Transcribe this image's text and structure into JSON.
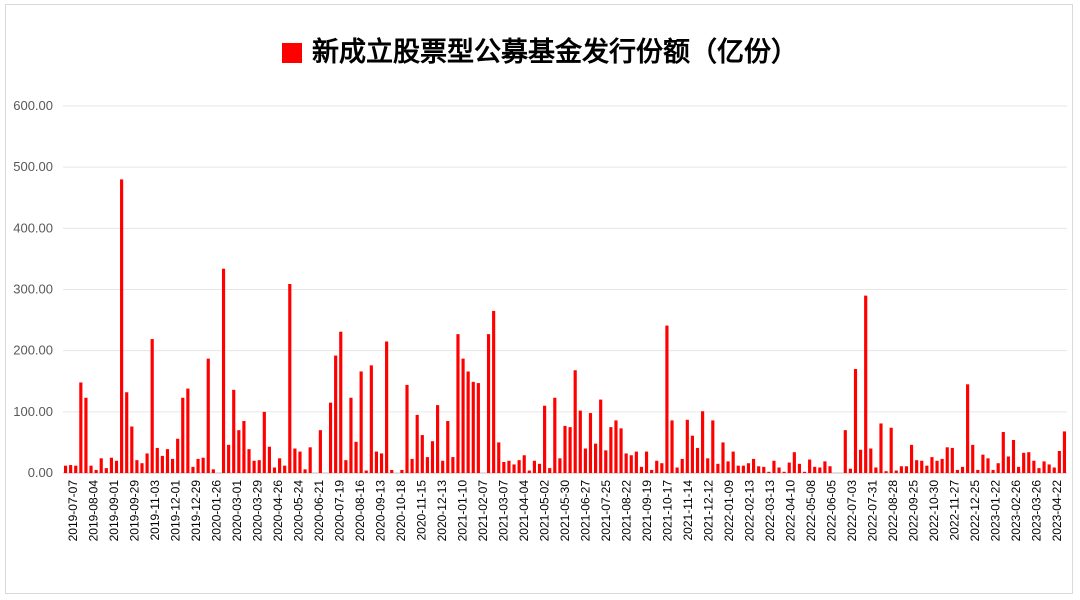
{
  "chart_data": {
    "type": "bar",
    "title": "新成立股票型公募基金发行份额（亿份）",
    "series": [
      {
        "name": "新成立股票型公募基金发行份额（亿份）",
        "color": "#ff0000"
      }
    ],
    "ylim": [
      0,
      600
    ],
    "y_ticks": [
      "0.00",
      "100.00",
      "200.00",
      "300.00",
      "400.00",
      "500.00",
      "600.00"
    ],
    "grid": true,
    "legend": "top-center",
    "x_tick_labels": [
      "2019-07-07",
      "2019-08-04",
      "2019-09-01",
      "2019-09-29",
      "2019-11-03",
      "2019-12-01",
      "2019-12-29",
      "2020-01-26",
      "2020-03-01",
      "2020-03-29",
      "2020-04-26",
      "2020-05-24",
      "2020-06-21",
      "2020-07-19",
      "2020-08-16",
      "2020-09-13",
      "2020-10-18",
      "2020-11-15",
      "2020-12-13",
      "2021-01-10",
      "2021-02-07",
      "2021-03-07",
      "2021-04-04",
      "2021-05-02",
      "2021-05-30",
      "2021-06-27",
      "2021-07-25",
      "2021-08-22",
      "2021-09-19",
      "2021-10-17",
      "2021-11-14",
      "2021-12-12",
      "2022-01-09",
      "2022-02-13",
      "2022-03-13",
      "2022-04-10",
      "2022-05-08",
      "2022-06-05",
      "2022-07-03",
      "2022-07-31",
      "2022-08-28",
      "2022-09-25",
      "2022-10-30",
      "2022-11-27",
      "2022-12-25",
      "2023-01-22",
      "2023-02-26",
      "2023-03-26",
      "2023-04-22"
    ],
    "values": [
      12,
      13,
      12,
      148,
      123,
      12,
      5,
      24,
      8,
      25,
      20,
      480,
      132,
      76,
      21,
      16,
      32,
      219,
      41,
      28,
      39,
      23,
      56,
      123,
      138,
      10,
      23,
      25,
      187,
      6,
      0,
      334,
      46,
      136,
      70,
      85,
      39,
      20,
      21,
      100,
      43,
      9,
      24,
      12,
      309,
      40,
      35,
      6,
      42,
      0,
      70,
      0,
      115,
      192,
      231,
      21,
      123,
      51,
      166,
      4,
      176,
      35,
      32,
      215,
      5,
      0,
      5,
      144,
      23,
      95,
      62,
      26,
      52,
      111,
      20,
      85,
      26,
      227,
      187,
      166,
      149,
      147,
      0,
      227,
      265,
      50,
      18,
      20,
      14,
      21,
      29,
      4,
      20,
      15,
      110,
      8,
      123,
      24,
      77,
      75,
      168,
      102,
      40,
      98,
      48,
      120,
      37,
      75,
      86,
      73,
      32,
      29,
      35,
      10,
      35,
      5,
      20,
      16,
      241,
      86,
      9,
      23,
      87,
      61,
      41,
      101,
      24,
      86,
      15,
      50,
      19,
      35,
      12,
      12,
      16,
      23,
      11,
      10,
      2,
      20,
      9,
      2,
      17,
      34,
      15,
      2,
      22,
      10,
      9,
      19,
      11,
      0,
      0,
      70,
      7,
      170,
      38,
      290,
      40,
      9,
      81,
      3,
      74,
      4,
      11,
      11,
      46,
      21,
      20,
      12,
      26,
      20,
      23,
      42,
      41,
      5,
      10,
      145,
      46,
      5,
      30,
      24,
      5,
      16,
      67,
      27,
      54,
      10,
      33,
      34,
      20,
      8,
      19,
      14,
      9,
      36,
      68
    ]
  }
}
